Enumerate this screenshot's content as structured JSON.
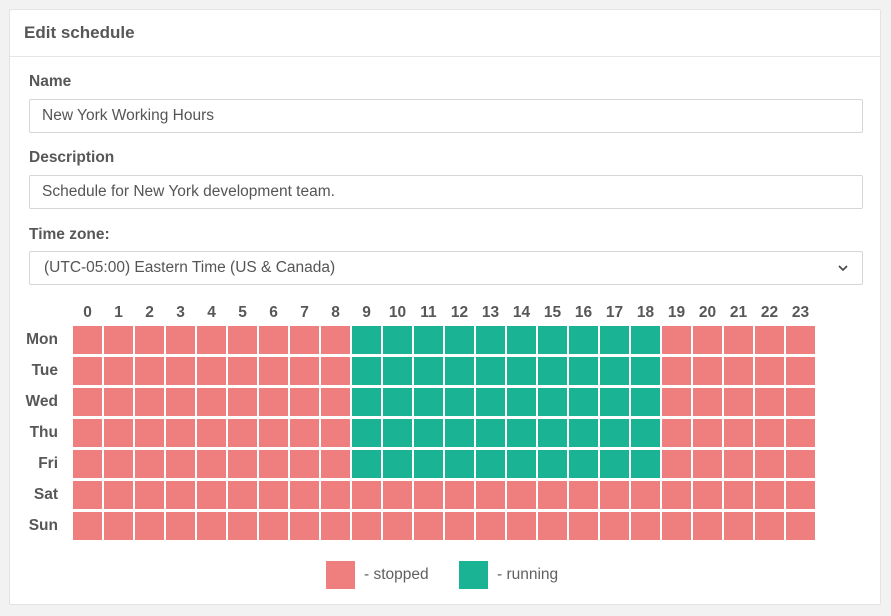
{
  "header": {
    "title": "Edit schedule"
  },
  "form": {
    "name_label": "Name",
    "name_value": "New York Working Hours",
    "description_label": "Description",
    "description_value": "Schedule for New York development team.",
    "timezone_label": "Time zone:",
    "timezone_value": "(UTC-05:00) Eastern Time (US & Canada)"
  },
  "schedule": {
    "hours": [
      "0",
      "1",
      "2",
      "3",
      "4",
      "5",
      "6",
      "7",
      "8",
      "9",
      "10",
      "11",
      "12",
      "13",
      "14",
      "15",
      "16",
      "17",
      "18",
      "19",
      "20",
      "21",
      "22",
      "23"
    ],
    "days": [
      {
        "label": "Mon",
        "running": [
          9,
          10,
          11,
          12,
          13,
          14,
          15,
          16,
          17,
          18
        ]
      },
      {
        "label": "Tue",
        "running": [
          9,
          10,
          11,
          12,
          13,
          14,
          15,
          16,
          17,
          18
        ]
      },
      {
        "label": "Wed",
        "running": [
          9,
          10,
          11,
          12,
          13,
          14,
          15,
          16,
          17,
          18
        ]
      },
      {
        "label": "Thu",
        "running": [
          9,
          10,
          11,
          12,
          13,
          14,
          15,
          16,
          17,
          18
        ]
      },
      {
        "label": "Fri",
        "running": [
          9,
          10,
          11,
          12,
          13,
          14,
          15,
          16,
          17,
          18
        ]
      },
      {
        "label": "Sat",
        "running": []
      },
      {
        "label": "Sun",
        "running": []
      }
    ]
  },
  "legend": {
    "stopped_label": "- stopped",
    "running_label": "- running"
  },
  "colors": {
    "stopped": "#ef7f7f",
    "running": "#1ab394"
  }
}
